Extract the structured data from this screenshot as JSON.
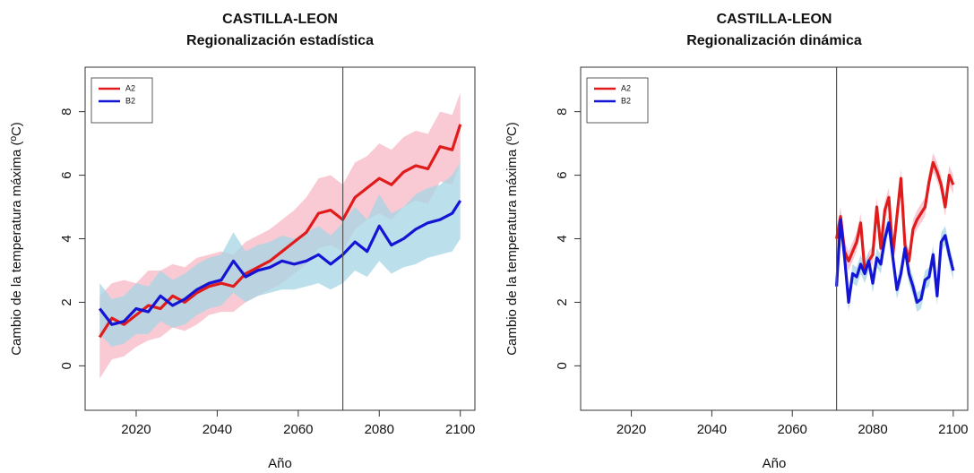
{
  "chart_data": [
    {
      "type": "line",
      "title": "CASTILLA-LEON",
      "subtitle": "Regionalización estadística",
      "x_label": "Año",
      "y_label": "Cambio de la temperatura máxima (ºC)",
      "xlim": [
        2007.4,
        2103.6
      ],
      "ylim": [
        -1.4,
        9.4
      ],
      "xticks": [
        2020,
        2040,
        2060,
        2080,
        2100
      ],
      "yticks": [
        0,
        2,
        4,
        6,
        8
      ],
      "vline": 2071,
      "legend": "top-left",
      "x": [
        2011,
        2014,
        2017,
        2020,
        2023,
        2026,
        2029,
        2032,
        2035,
        2038,
        2041,
        2044,
        2047,
        2050,
        2053,
        2056,
        2059,
        2062,
        2065,
        2068,
        2071,
        2074,
        2077,
        2080,
        2083,
        2086,
        2089,
        2092,
        2095,
        2098,
        2100
      ],
      "series": [
        {
          "name": "A2",
          "color": "#e01b1b",
          "band_color": "#f7b8c4",
          "values": [
            0.9,
            1.5,
            1.3,
            1.6,
            1.9,
            1.8,
            2.2,
            2.0,
            2.3,
            2.5,
            2.6,
            2.5,
            2.9,
            3.1,
            3.3,
            3.6,
            3.9,
            4.2,
            4.8,
            4.9,
            4.6,
            5.3,
            5.6,
            5.9,
            5.7,
            6.1,
            6.3,
            6.2,
            6.9,
            6.8,
            7.6
          ],
          "lower": [
            -0.4,
            0.2,
            0.3,
            0.6,
            0.8,
            0.9,
            1.2,
            1.1,
            1.3,
            1.6,
            1.7,
            1.7,
            2.0,
            2.2,
            2.4,
            2.6,
            2.9,
            3.2,
            3.7,
            3.8,
            3.6,
            4.3,
            4.6,
            4.8,
            4.6,
            5.0,
            5.2,
            5.1,
            5.8,
            5.7,
            6.4
          ],
          "upper": [
            2.2,
            2.6,
            2.7,
            2.6,
            3.0,
            3.0,
            3.2,
            3.1,
            3.4,
            3.5,
            3.6,
            3.5,
            3.9,
            4.1,
            4.3,
            4.6,
            4.9,
            5.3,
            5.9,
            6.0,
            5.7,
            6.4,
            6.6,
            7.0,
            6.8,
            7.2,
            7.4,
            7.3,
            8.0,
            7.9,
            8.6
          ]
        },
        {
          "name": "B2",
          "color": "#1414d4",
          "band_color": "#a6d4e6",
          "values": [
            1.8,
            1.3,
            1.4,
            1.8,
            1.7,
            2.2,
            1.9,
            2.1,
            2.4,
            2.6,
            2.7,
            3.3,
            2.8,
            3.0,
            3.1,
            3.3,
            3.2,
            3.3,
            3.5,
            3.2,
            3.5,
            3.9,
            3.6,
            4.4,
            3.8,
            4.0,
            4.3,
            4.5,
            4.6,
            4.8,
            5.2
          ],
          "lower": [
            1.0,
            0.6,
            0.7,
            1.0,
            1.0,
            1.4,
            1.2,
            1.3,
            1.6,
            1.8,
            1.9,
            2.3,
            2.0,
            2.2,
            2.3,
            2.4,
            2.4,
            2.5,
            2.6,
            2.4,
            2.6,
            3.0,
            2.8,
            3.3,
            2.9,
            3.1,
            3.2,
            3.4,
            3.5,
            3.6,
            4.0
          ],
          "upper": [
            2.6,
            2.1,
            2.2,
            2.6,
            2.5,
            3.0,
            2.7,
            2.9,
            3.2,
            3.4,
            3.5,
            4.2,
            3.6,
            3.8,
            3.9,
            4.1,
            4.0,
            4.2,
            4.4,
            4.1,
            4.5,
            5.0,
            4.6,
            5.4,
            4.8,
            5.0,
            5.4,
            5.6,
            5.7,
            6.0,
            6.4
          ]
        }
      ]
    },
    {
      "type": "line",
      "title": "CASTILLA-LEON",
      "subtitle": "Regionalización dinámica",
      "x_label": "Año",
      "y_label": "Cambio de la temperatura máxima (ºC)",
      "xlim": [
        2007.4,
        2103.6
      ],
      "ylim": [
        -1.4,
        9.4
      ],
      "xticks": [
        2020,
        2040,
        2060,
        2080,
        2100
      ],
      "yticks": [
        0,
        2,
        4,
        6,
        8
      ],
      "vline": 2071,
      "legend": "top-left",
      "x": [
        2071,
        2072,
        2073,
        2074,
        2075,
        2076,
        2077,
        2078,
        2079,
        2080,
        2081,
        2082,
        2083,
        2084,
        2085,
        2086,
        2087,
        2088,
        2089,
        2090,
        2091,
        2092,
        2093,
        2094,
        2095,
        2096,
        2097,
        2098,
        2099,
        2100
      ],
      "series": [
        {
          "name": "A2",
          "color": "#e01b1b",
          "band_color": "#f7b8c4",
          "values": [
            4.0,
            4.7,
            3.6,
            3.3,
            3.6,
            3.9,
            4.5,
            3.0,
            3.3,
            3.5,
            5.0,
            3.7,
            4.9,
            5.3,
            3.5,
            4.7,
            5.9,
            3.8,
            3.3,
            4.3,
            4.6,
            4.8,
            5.0,
            5.8,
            6.4,
            6.1,
            5.7,
            5.0,
            6.0,
            5.7
          ],
          "lower": [
            3.7,
            4.4,
            3.3,
            3.0,
            3.3,
            3.6,
            4.2,
            2.7,
            3.0,
            3.2,
            4.7,
            3.4,
            4.6,
            5.0,
            3.2,
            4.4,
            5.6,
            3.5,
            3.0,
            4.0,
            4.3,
            4.5,
            4.7,
            5.5,
            6.1,
            5.8,
            5.4,
            4.7,
            5.7,
            5.4
          ],
          "upper": [
            4.3,
            5.0,
            3.9,
            3.6,
            3.9,
            4.2,
            4.8,
            3.3,
            3.6,
            3.8,
            5.3,
            4.0,
            5.2,
            5.6,
            3.8,
            5.0,
            6.2,
            4.1,
            3.6,
            4.6,
            4.9,
            5.1,
            5.3,
            6.1,
            6.7,
            6.4,
            6.0,
            5.3,
            6.3,
            6.0
          ]
        },
        {
          "name": "B2",
          "color": "#1414d4",
          "band_color": "#a6d4e6",
          "values": [
            2.5,
            4.6,
            3.4,
            2.0,
            2.9,
            2.8,
            3.2,
            2.9,
            3.3,
            2.6,
            3.4,
            3.2,
            4.0,
            4.5,
            3.4,
            2.4,
            2.9,
            3.7,
            2.9,
            2.5,
            2.0,
            2.1,
            2.7,
            2.8,
            3.5,
            2.2,
            3.9,
            4.1,
            3.5,
            3.0
          ],
          "lower": [
            2.2,
            4.3,
            3.1,
            1.7,
            2.6,
            2.5,
            2.9,
            2.6,
            3.0,
            2.3,
            3.1,
            2.9,
            3.7,
            4.2,
            3.1,
            2.1,
            2.6,
            3.4,
            2.6,
            2.2,
            1.7,
            1.8,
            2.4,
            2.5,
            3.2,
            1.9,
            3.6,
            3.8,
            3.2,
            2.7
          ],
          "upper": [
            2.8,
            4.9,
            3.7,
            2.3,
            3.2,
            3.1,
            3.5,
            3.2,
            3.6,
            2.9,
            3.7,
            3.5,
            4.3,
            4.8,
            3.7,
            2.7,
            3.2,
            4.0,
            3.2,
            2.8,
            2.3,
            2.4,
            3.0,
            3.1,
            3.8,
            2.5,
            4.2,
            4.4,
            3.8,
            3.3
          ]
        }
      ]
    }
  ]
}
